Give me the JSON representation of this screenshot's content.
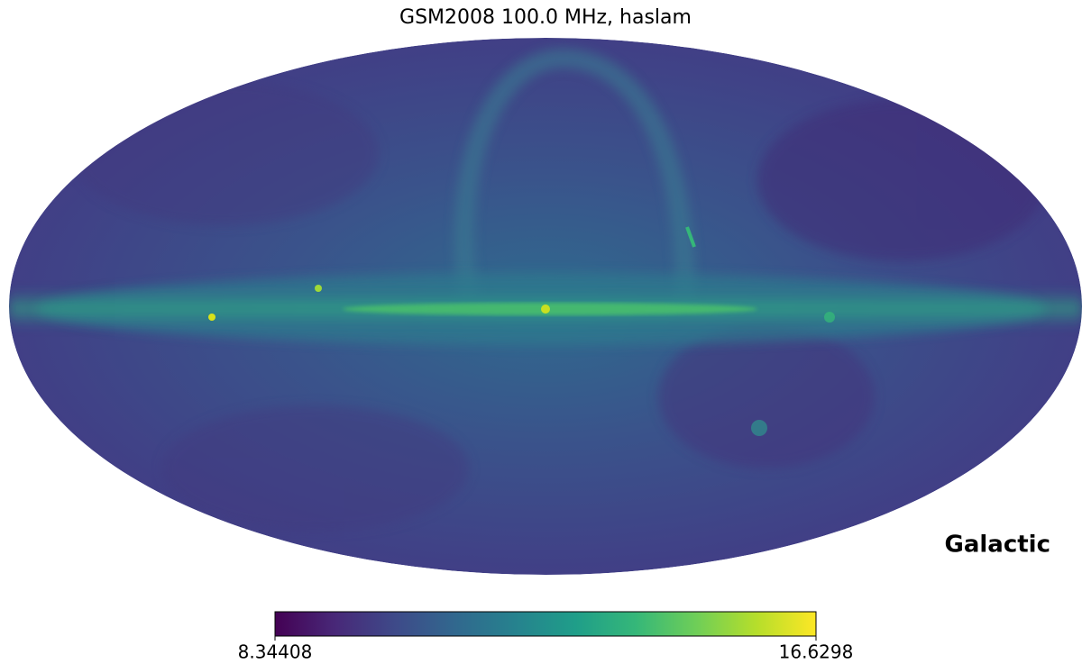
{
  "chart_data": {
    "type": "mollweide",
    "title": "GSM2008 100.0 MHz, haslam",
    "coord_label": "Galactic",
    "colorbar": {
      "lim": [
        8.34408,
        16.6298
      ],
      "ticks": [
        8.34408,
        16.6298
      ],
      "colormap": [
        "#440154",
        "#482878",
        "#3e4a89",
        "#31688e",
        "#26828e",
        "#1f9e89",
        "#35b779",
        "#6ece58",
        "#b5de2b",
        "#fde725"
      ]
    }
  }
}
